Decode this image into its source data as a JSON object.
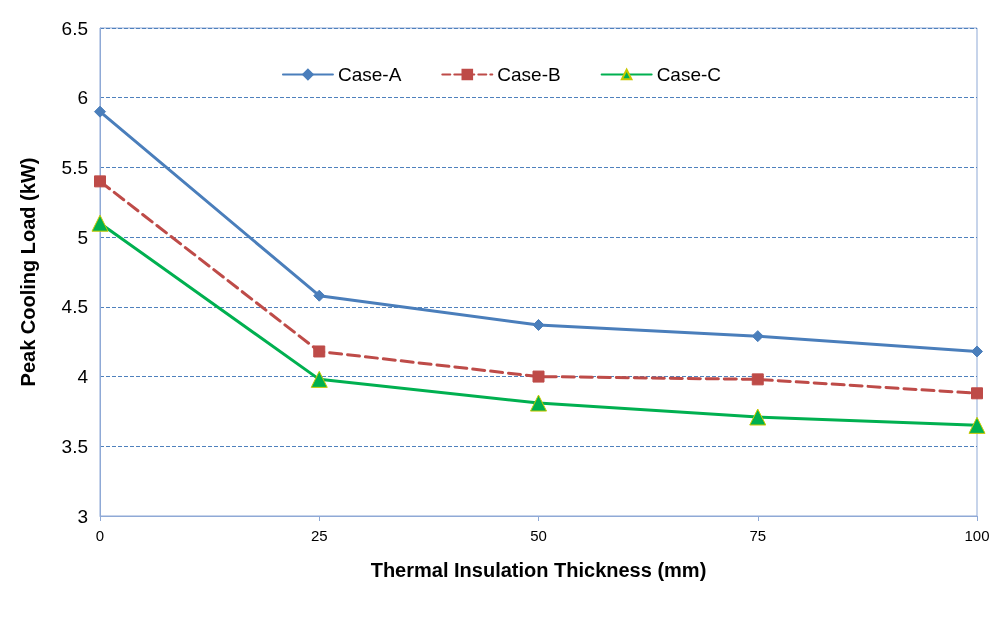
{
  "chart_data": {
    "type": "line",
    "xlabel": "Thermal Insulation Thickness (mm)",
    "ylabel": "Peak Cooling Load (kW)",
    "x": [
      0,
      25,
      50,
      75,
      100
    ],
    "series": [
      {
        "name": "Case-A",
        "color": "#4a7ebb",
        "marker": "diamond",
        "line_style": "solid",
        "values": [
          5.9,
          4.58,
          4.37,
          4.29,
          4.18
        ]
      },
      {
        "name": "Case-B",
        "color": "#be4b48",
        "marker": "square",
        "line_style": "dashed",
        "values": [
          5.4,
          4.18,
          4.0,
          3.98,
          3.88
        ]
      },
      {
        "name": "Case-C",
        "color": "#00b050",
        "marker": "triangle",
        "line_style": "solid",
        "values": [
          5.1,
          3.98,
          3.81,
          3.71,
          3.65
        ]
      }
    ],
    "xlim": [
      0,
      100
    ],
    "xticks": [
      0,
      25,
      50,
      75,
      100
    ],
    "ylim": [
      3,
      6.5
    ],
    "yticks": [
      3,
      3.5,
      4,
      4.5,
      5,
      5.5,
      6,
      6.5
    ],
    "grid": "y",
    "legend": "top"
  }
}
